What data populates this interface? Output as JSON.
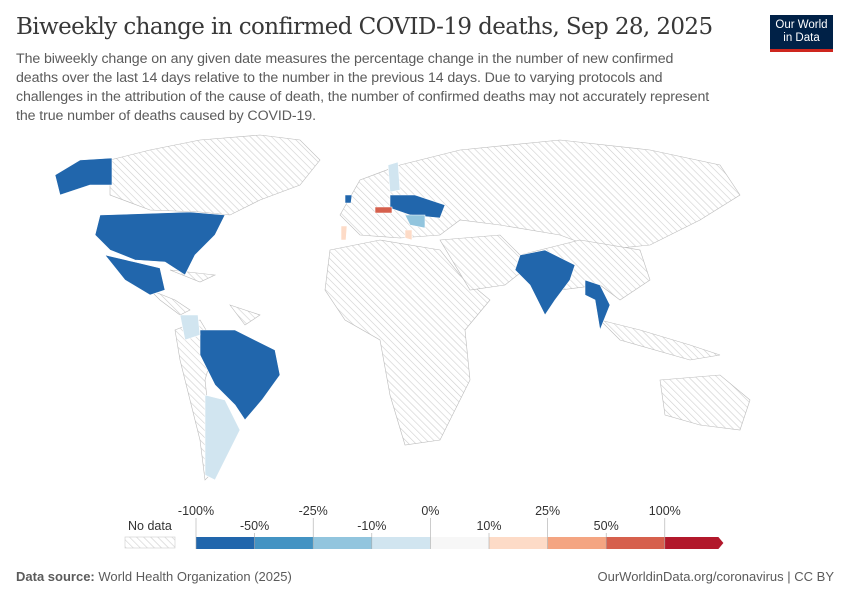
{
  "header": {
    "title": "Biweekly change in confirmed COVID-19 deaths, Sep 28, 2025",
    "subtitle": "The biweekly change on any given date measures the percentage change in the number of new confirmed deaths over the last 14 days relative to the number in the previous 14 days. Due to varying protocols and challenges in the attribution of the cause of death, the number of confirmed deaths may not accurately represent the true number of deaths caused by COVID-19.",
    "logo": "Our World in Data"
  },
  "chart_data": {
    "type": "choropleth-map",
    "legend": {
      "no_data_label": "No data",
      "upper_ticks": [
        "-100%",
        "-25%",
        "0%",
        "25%",
        "100%"
      ],
      "lower_ticks": [
        "-50%",
        "-10%",
        "10%",
        "50%"
      ],
      "bins": [
        {
          "from": -100,
          "to": -50,
          "color": "#2166ac"
        },
        {
          "from": -50,
          "to": -25,
          "color": "#4393c3"
        },
        {
          "from": -25,
          "to": -10,
          "color": "#92c5de"
        },
        {
          "from": -10,
          "to": 0,
          "color": "#d1e5f0"
        },
        {
          "from": 0,
          "to": 10,
          "color": "#f7f7f7"
        },
        {
          "from": 10,
          "to": 25,
          "color": "#fddbc7"
        },
        {
          "from": 25,
          "to": 50,
          "color": "#f4a582"
        },
        {
          "from": 50,
          "to": 100,
          "color": "#d6604d"
        },
        {
          "from": 100,
          "to": null,
          "color": "#b2182b"
        }
      ],
      "no_data_color": "#e0e0e0"
    }
  },
  "footer": {
    "source_label": "Data source:",
    "source": "World Health Organization (2025)",
    "url": "OurWorldinData.org/coronavirus | CC BY"
  }
}
